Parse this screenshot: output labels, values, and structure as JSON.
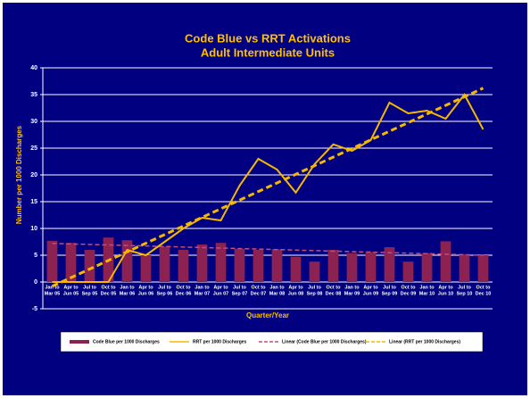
{
  "chart_data": {
    "type": "bar-line",
    "title": [
      "Code Blue vs RRT Activations",
      "Adult Intermediate Units"
    ],
    "y_label": "Number per 1000 Discharges",
    "x_label": "Quarter/Year",
    "categories": [
      [
        "Jan to",
        "Mar 05"
      ],
      [
        "Apr to",
        "Jun 05"
      ],
      [
        "Jul to",
        "Sep 05"
      ],
      [
        "Oct to",
        "Dec 05"
      ],
      [
        "Jan to",
        "Mar 06"
      ],
      [
        "Apr to",
        "Jun 06"
      ],
      [
        "Jul to",
        "Sep 06"
      ],
      [
        "Oct to",
        "Dec 06"
      ],
      [
        "Jan to",
        "Mar 07"
      ],
      [
        "Apr to",
        "Jun 07"
      ],
      [
        "Jul to",
        "Sep 07"
      ],
      [
        "Oct to",
        "Dec 07"
      ],
      [
        "Jan to",
        "Mar 08"
      ],
      [
        "Apr to",
        "Jun 08"
      ],
      [
        "Jul to",
        "Sep 08"
      ],
      [
        "Oct to",
        "Dec 08"
      ],
      [
        "Jan to",
        "Mar 09"
      ],
      [
        "Apr to",
        "Jun 09"
      ],
      [
        "Jul to",
        "Sep 09"
      ],
      [
        "Oct to",
        "Dec 09"
      ],
      [
        "Jan to",
        "Mar 10"
      ],
      [
        "Apr to",
        "Jun 10"
      ],
      [
        "Jul to",
        "Sep 10"
      ],
      [
        "Oct to",
        "Dec 10"
      ]
    ],
    "series": [
      {
        "name": "Code Blue per 1000 Discharges",
        "type": "bar",
        "color": "#8b2252",
        "values": [
          7.7,
          7.3,
          6,
          8.3,
          7.8,
          5,
          6.6,
          6,
          7,
          7.3,
          6.2,
          6,
          6.1,
          4.7,
          3.8,
          6,
          5.4,
          5.6,
          6.5,
          3.8,
          5.4,
          7.6,
          5.2,
          5
        ],
        "trend": {
          "name": "Linear (Code Blue per 1000 Discharges)",
          "color": "#c0507a",
          "values": [
            7.2,
            5.0
          ]
        }
      },
      {
        "name": "RRT per 1000 Discharges",
        "type": "line",
        "color": "#f5b800",
        "values": [
          0,
          0,
          0,
          0,
          6,
          5,
          7.5,
          10,
          12,
          11.5,
          18,
          23,
          21,
          16.7,
          22,
          25.7,
          24.5,
          26.5,
          33.5,
          31.5,
          32,
          30.5,
          35,
          28.5
        ],
        "trend": {
          "name": "Linear (RRT per 1000 Discharges)",
          "color": "#f5b800",
          "values": [
            -0.8,
            36.2
          ]
        }
      }
    ],
    "ylim": [
      -5,
      40
    ],
    "yticks": [
      -5,
      0,
      5,
      10,
      15,
      20,
      25,
      30,
      35,
      40
    ],
    "grid": true
  }
}
